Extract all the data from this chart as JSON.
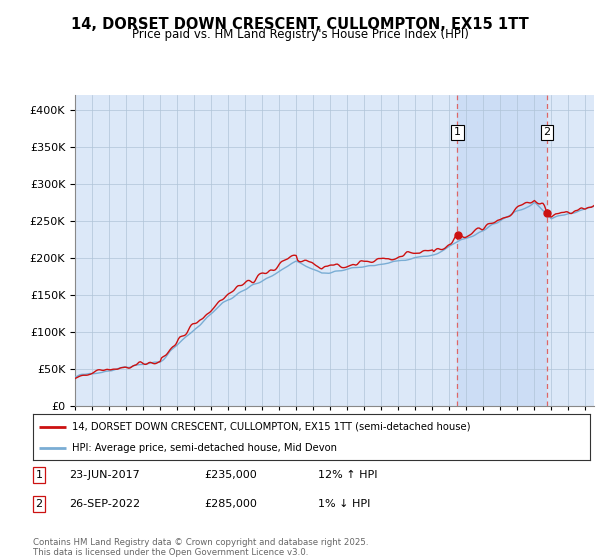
{
  "title": "14, DORSET DOWN CRESCENT, CULLOMPTON, EX15 1TT",
  "subtitle": "Price paid vs. HM Land Registry's House Price Index (HPI)",
  "legend_line1": "14, DORSET DOWN CRESCENT, CULLOMPTON, EX15 1TT (semi-detached house)",
  "legend_line2": "HPI: Average price, semi-detached house, Mid Devon",
  "annotation1_label": "1",
  "annotation1_date": "23-JUN-2017",
  "annotation1_price": 235000,
  "annotation1_pct": "12% ↑ HPI",
  "annotation2_label": "2",
  "annotation2_date": "26-SEP-2022",
  "annotation2_price": 285000,
  "annotation2_pct": "1% ↓ HPI",
  "footer": "Contains HM Land Registry data © Crown copyright and database right 2025.\nThis data is licensed under the Open Government Licence v3.0.",
  "hpi_color": "#7aadd4",
  "price_color": "#cc1111",
  "annotation_vline_color": "#dd6666",
  "background_color": "#dce8f8",
  "shade_color": "#ccddf5",
  "plot_bg_color": "#ffffff",
  "ylim": [
    0,
    420000
  ],
  "yticks": [
    0,
    50000,
    100000,
    150000,
    200000,
    250000,
    300000,
    350000,
    400000
  ],
  "year_start": 1995,
  "year_end": 2025,
  "t1": 2017.47,
  "t2": 2022.74,
  "marker1_price": 235000,
  "marker2_price": 285000
}
